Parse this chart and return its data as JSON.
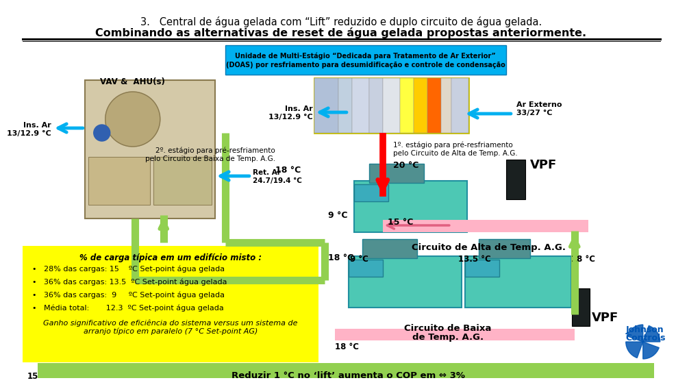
{
  "title_line1": "3.   Central de água gelada com “Lift” reduzido e duplo circuito de água gelada.",
  "title_line2": "Combinando as alternativas de reset de água gelada propostas anteriormente.",
  "bg_color": "#ffffff",
  "cyan_box_color": "#00b0f0",
  "cyan_text_l1": "Unidade de Multi-Estágio “Dedicada para Tratamento de Ar Exterior”",
  "cyan_text_l2": "(DOAS) por resfriamento para desumidificação e controle de condensação",
  "label_vav": "VAV &  AHU(s)",
  "label_ins_left_l1": "Ins. Ar",
  "label_ins_left_l2": "13/12.9 °C",
  "label_ins_center_l1": "Ins. Ar",
  "label_ins_center_l2": "13/12.9 °C",
  "label_ret": "Ret. Ar\n24.7/19.4 °C",
  "label_ar_ext_l1": "Ar Externo",
  "label_ar_ext_l2": "33/27 °C",
  "label_2nd_l1": "2º. estágio para pré-resfriamento",
  "label_2nd_l2": "pelo Circuito de Baixa de Temp. A.G.",
  "label_18c_a": "18 °C",
  "label_1st_l1": "1º. estágio para pré-resfriamento",
  "label_1st_l2": "pelo Circuito de Alta de Temp. A.G.",
  "label_20c": "20 °C",
  "label_vpf_top": "VPF",
  "label_9c_a": "9 °C",
  "label_15c": "15 °C",
  "label_18c_b": "18 °C",
  "label_circuit_alta": "Circuito de Alta de Temp. A.G.",
  "label_9c_b": "9 °C",
  "label_135c": "13.5 °C",
  "label_18c_c": "18 °C",
  "label_vpf_bot": "VPF",
  "label_circ_baixa_l1": "Circuito de Baixa",
  "label_circ_baixa_l2": "de Temp. A.G.",
  "label_18c_d": "18 °C",
  "yellow_title": "% de carga típica em um edifício misto :",
  "bullet1": "•   28% das cargas: 15    ºC Set-point água gelada",
  "bullet2": "•   36% das cargas: 13.5  ºC Set-point água gelada",
  "bullet3": "•   36% das cargas:  9     ºC Set-point água gelada",
  "bullet4": "•   Média total:       12.3  ºC Set-point água gelada",
  "ganho_l1": "Ganho significativo de eficiência do sistema versus um sistema de",
  "ganho_l2": "arranjo típico em paralelo (7 °C Set-point AG)",
  "green_bar_text": "Reduzir 1 °C no ‘lift’ aumenta o COP em ⇔ 3%",
  "num_15": "15",
  "jc_l1": "Johnson",
  "jc_l2": "Controls",
  "green": "#92d050",
  "cyan": "#00b0f0",
  "yellow": "#ffff00",
  "pink": "#ffb3c6",
  "red": "#ff0000",
  "teal": "#4dc8b4"
}
